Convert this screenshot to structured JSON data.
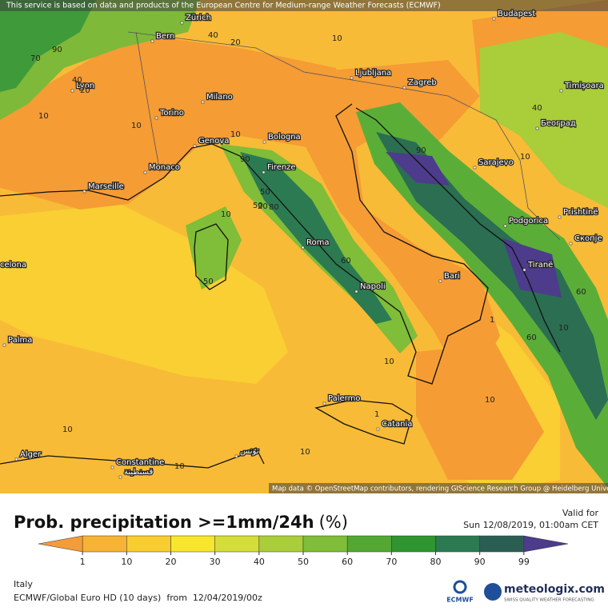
{
  "banner": "This service is based on data and products of the European Centre for Medium-range Weather Forecasts (ECMWF)",
  "cities": [
    "Budapest",
    "Zürich",
    "Bern",
    "Lyon",
    "Milano",
    "Torino",
    "Genova",
    "Bologna",
    "Monaco",
    "Marseille",
    "Firenze",
    "Roma",
    "Napoli",
    "Bari",
    "Palermo",
    "Catania",
    "Ljubljana",
    "Zagreb",
    "Timișoara",
    "Београд",
    "Sarajevo",
    "Podgorica",
    "Prishtinë",
    "Скопје",
    "Tiranë",
    "celona",
    "Palma",
    "Alger",
    "Constantine",
    "قسنطينة",
    "تونس"
  ],
  "contour_labels": [
    "90",
    "70",
    "40",
    "20",
    "10",
    "10",
    "40",
    "20",
    "10",
    "10",
    "90",
    "50",
    "80",
    "50",
    "20",
    "10",
    "50",
    "60",
    "1",
    "10",
    "10",
    "90",
    "60",
    "40",
    "10",
    "60",
    "10",
    "10",
    "10",
    "1",
    "10"
  ],
  "map_credit": "Map data © OpenStreetMap contributors, rendering GIScience Research Group @ Heidelberg University",
  "title": "Prob. precipitation >=1mm/24h",
  "title_unit": "(%)",
  "valid_label": "Valid for",
  "valid_time": "Sun 12/08/2019, 01:00am CET",
  "legend": {
    "ticks": [
      1,
      10,
      20,
      30,
      40,
      50,
      60,
      70,
      80,
      90,
      99
    ],
    "colors": [
      "#f49b3a",
      "#f7b334",
      "#f9cc30",
      "#f8e62c",
      "#d5dd3a",
      "#aacd3a",
      "#80bd38",
      "#53a833",
      "#2f9530",
      "#2c7a52",
      "#2b5e52",
      "#4d3b8c"
    ]
  },
  "region": "Italy",
  "model_run": "ECMWF/Global Euro HD (10 days)  from  12/04/2019/00z",
  "logos": {
    "ecmwf": "ECMWF",
    "brand": "meteologix.com",
    "tagline": "SWISS QUALITY WEATHER FORECASTING"
  }
}
